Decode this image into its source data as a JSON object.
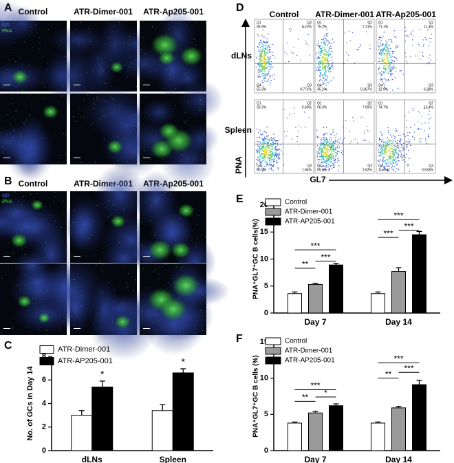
{
  "panel_labels": [
    "A",
    "B",
    "C",
    "D",
    "E",
    "F"
  ],
  "microscopy": {
    "A": {
      "columns": [
        "Control",
        "ATR-Dimer-001",
        "ATR-Ap205-001"
      ],
      "legend": [
        "IgD",
        "PNA"
      ]
    },
    "B": {
      "columns": [
        "Control",
        "ATR-Dimer-001",
        "ATR-Ap205-001"
      ],
      "legend": [
        "IgD",
        "PNA"
      ]
    }
  },
  "flow": {
    "columns": [
      "Control",
      "ATR-Dimer-001",
      "ATR-Ap205-001"
    ],
    "rows": [
      "dLNs",
      "Spleen"
    ],
    "y_axis_label": "PNA",
    "x_axis_label": "GL7",
    "quadrants": [
      "Q1",
      "Q2",
      "Q3",
      "Q4"
    ],
    "plots": [
      [
        [
          "93.9%",
          "6.22%",
          "0.771%",
          "55.3%"
        ],
        [
          "79.2%",
          "7.21%",
          "0.367%",
          "45.2%"
        ],
        [
          "71.1%",
          "11.2%",
          "6.28%",
          "12.9%"
        ]
      ],
      [
        [
          "93.3%",
          "5.60%",
          "1.84%",
          "56.9%"
        ],
        [
          "56.3%",
          "7.69%",
          "2.62%",
          "55.9%"
        ],
        [
          "74.7%",
          "13.4%",
          "0.633%",
          "11.4%"
        ]
      ]
    ]
  },
  "chart_data": [
    {
      "type": "bar",
      "y_label": "No. of GCs  in Day 14",
      "categories": [
        "dLNs",
        "Spleen"
      ],
      "series": [
        {
          "name": "ATR-Dimer-001",
          "color": "#ffffff",
          "values": [
            3.0,
            3.4
          ],
          "errors": [
            0.4,
            0.5
          ]
        },
        {
          "name": "ATR-AP205-001",
          "color": "#000000",
          "values": [
            5.4,
            6.6
          ],
          "errors": [
            0.5,
            0.35
          ]
        }
      ],
      "ylim": [
        0,
        8
      ],
      "yticks": [
        0,
        2,
        4,
        6,
        8
      ],
      "annotations": [
        [
          "*"
        ],
        [
          "*"
        ]
      ]
    },
    {
      "type": "bar",
      "y_label": "PNA⁺GL7⁺GC B cells(%)",
      "categories": [
        "Day 7",
        "Day 14"
      ],
      "series": [
        {
          "name": "Control",
          "color": "#ffffff",
          "values": [
            3.6,
            3.6
          ],
          "errors": [
            0.3,
            0.3
          ]
        },
        {
          "name": "ATR-Dimer-001",
          "color": "#9a9a9a",
          "values": [
            5.3,
            7.7
          ],
          "errors": [
            0.2,
            0.7
          ]
        },
        {
          "name": "ATR-AP205-001",
          "color": "#000000",
          "values": [
            8.9,
            14.5
          ],
          "errors": [
            0.3,
            0.6
          ]
        }
      ],
      "ylim": [
        0,
        20
      ],
      "yticks": [
        0,
        5,
        10,
        15,
        20
      ],
      "annotations": [
        [
          "***",
          "**",
          "***"
        ],
        [
          "***",
          "***",
          "***"
        ]
      ]
    },
    {
      "type": "bar",
      "y_label": "PNA⁺GL7⁺GC B cells (%)",
      "categories": [
        "Day 7",
        "Day 14"
      ],
      "series": [
        {
          "name": "Control",
          "color": "#ffffff",
          "values": [
            3.8,
            3.8
          ],
          "errors": [
            0.15,
            0.15
          ]
        },
        {
          "name": "ATR-Dimer-001",
          "color": "#9a9a9a",
          "values": [
            5.2,
            5.9
          ],
          "errors": [
            0.2,
            0.2
          ]
        },
        {
          "name": "ATR-AP205-001",
          "color": "#000000",
          "values": [
            6.2,
            9.1
          ],
          "errors": [
            0.25,
            0.6
          ]
        }
      ],
      "ylim": [
        0,
        15
      ],
      "yticks": [
        0,
        5,
        10,
        15
      ],
      "annotations": [
        [
          "***",
          "**",
          "*"
        ],
        [
          "***",
          "**",
          "***"
        ]
      ]
    }
  ]
}
